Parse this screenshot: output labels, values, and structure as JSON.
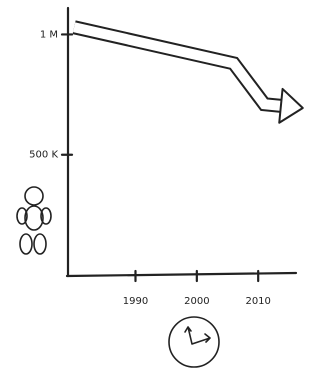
{
  "chart_data": {
    "type": "line",
    "x": [
      1980,
      2006,
      2011,
      2015
    ],
    "series": [
      {
        "color": "#222222",
        "values": [
          1030000,
          880000,
          710000,
          700000
        ]
      }
    ],
    "xlim": [
      1979,
      2016
    ],
    "xticks": [
      1990,
      2000,
      2010
    ],
    "ylim": [
      0,
      1110000
    ],
    "yticks": [
      {
        "value": 1000000,
        "label": "1 M"
      },
      {
        "value": 500000,
        "label": "500 K"
      }
    ]
  }
}
